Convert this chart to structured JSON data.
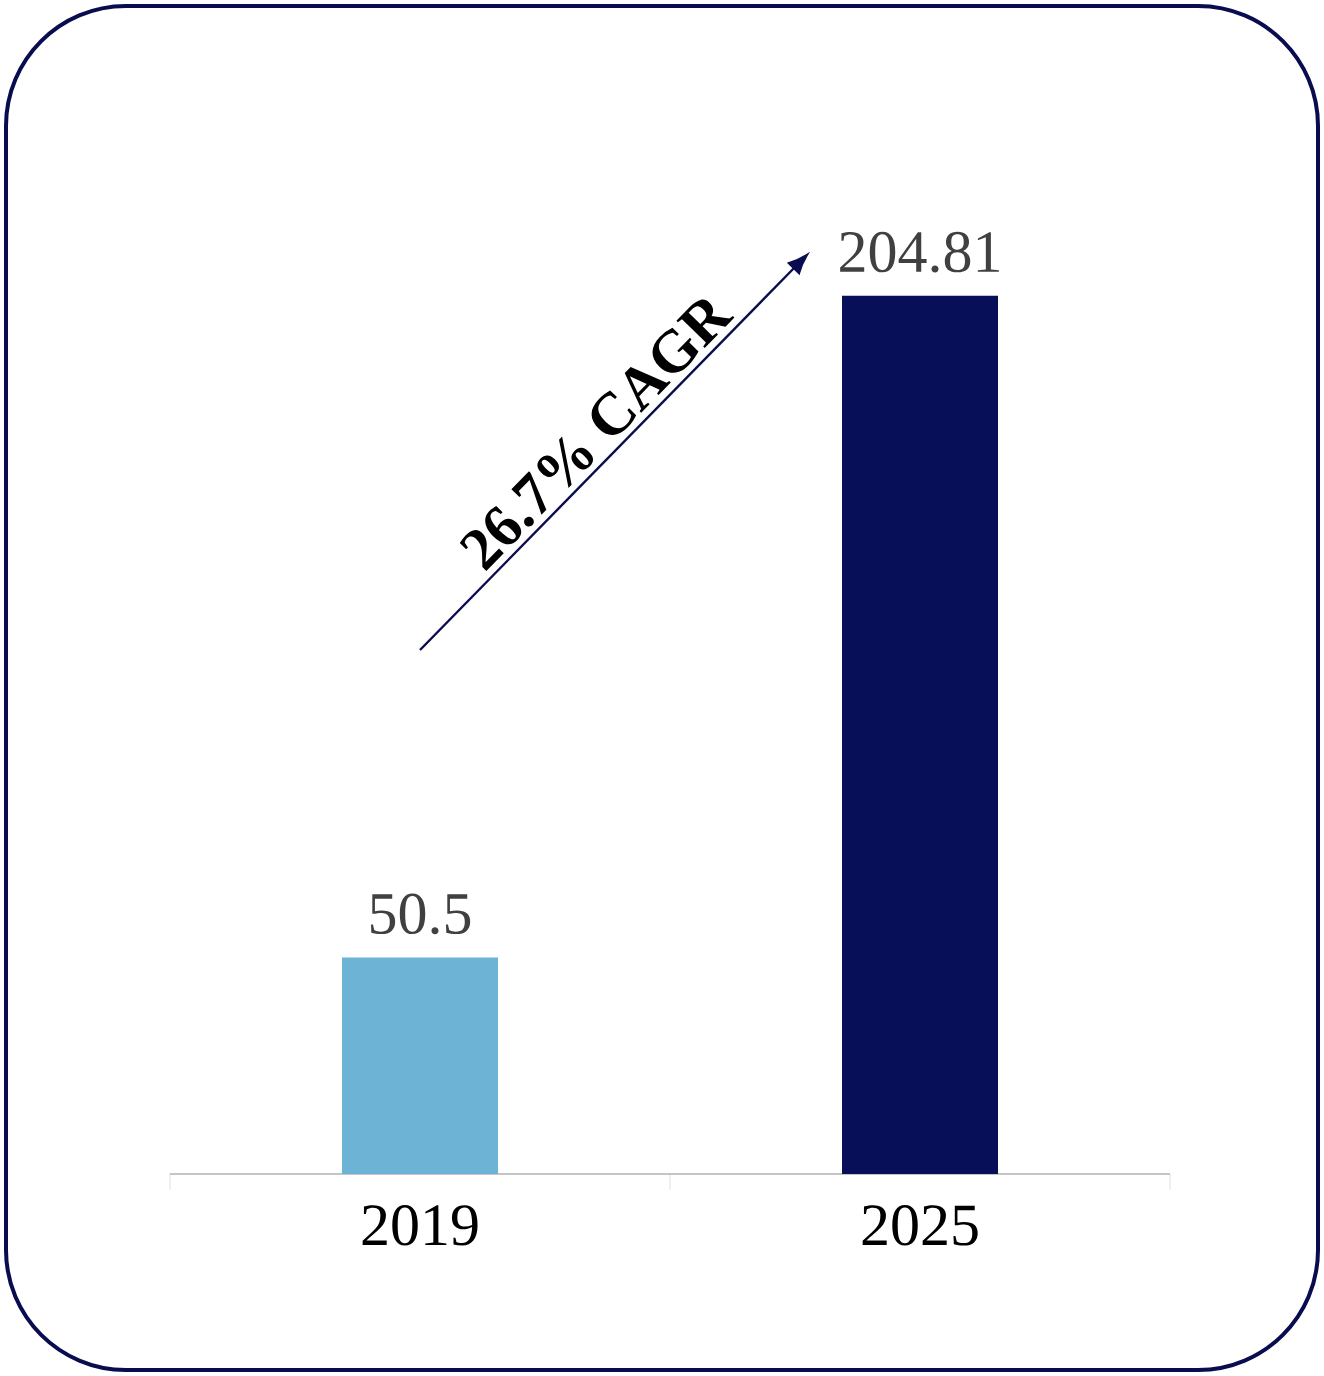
{
  "chart_data": {
    "type": "bar",
    "categories": [
      "2019",
      "2025"
    ],
    "values": [
      50.5,
      204.81
    ],
    "colors": [
      "#6db3d6",
      "#070f58"
    ],
    "data_labels": true,
    "annotations": [
      "26.7% CAGR"
    ]
  }
}
